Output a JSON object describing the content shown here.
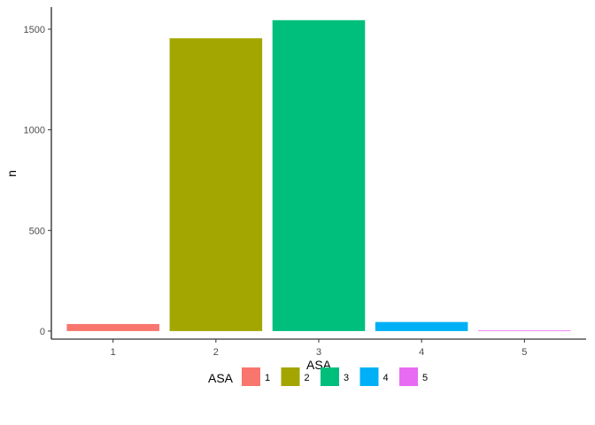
{
  "chart_data": {
    "type": "bar",
    "title": "",
    "xlabel": "ASA",
    "ylabel": "n",
    "categories": [
      "1",
      "2",
      "3",
      "4",
      "5"
    ],
    "values": [
      35,
      1455,
      1545,
      45,
      3
    ],
    "colors": [
      "#F8766D",
      "#A3A500",
      "#00BF7D",
      "#00B0F6",
      "#E76BF3"
    ],
    "ylim": [
      -40,
      1610
    ],
    "yticks": [
      0,
      500,
      1000,
      1500
    ],
    "ytick_labels": [
      "0",
      "500",
      "1000",
      "1500"
    ],
    "grid": false,
    "legend": {
      "title": "ASA",
      "position": "bottom",
      "entries": [
        "1",
        "2",
        "3",
        "4",
        "5"
      ]
    }
  }
}
